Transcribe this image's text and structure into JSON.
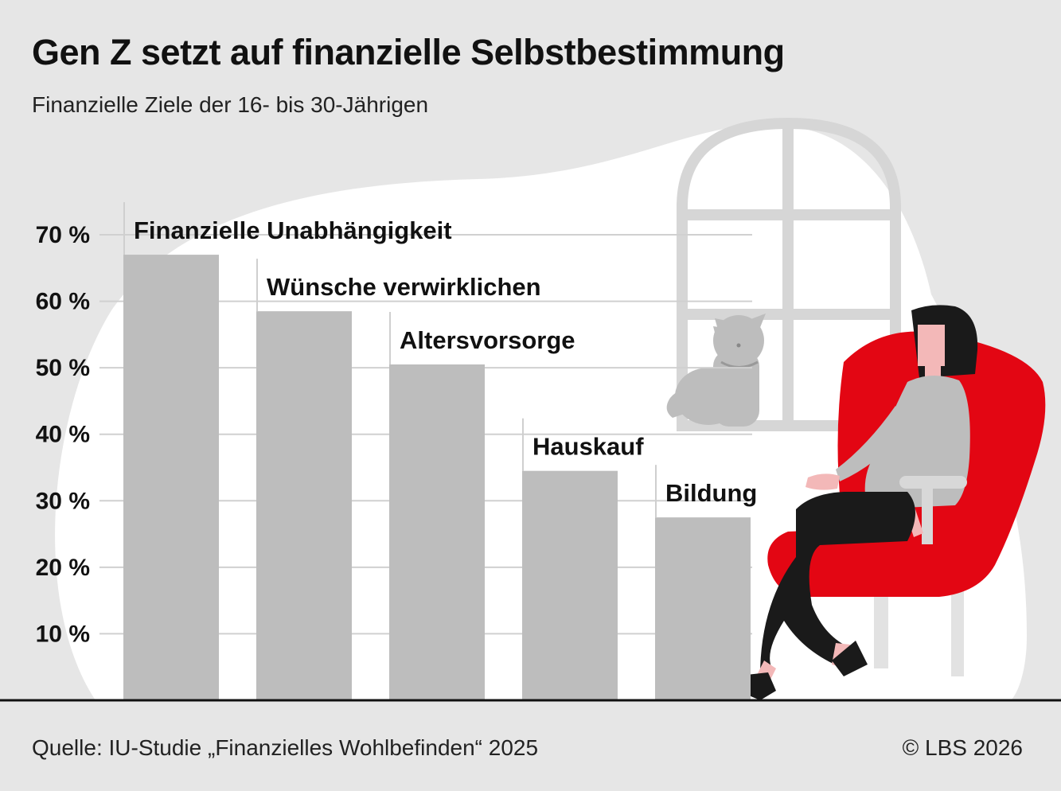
{
  "chart_data": {
    "type": "bar",
    "title": "Gen Z setzt auf finanzielle Selbstbestimmung",
    "subtitle": "Finanzielle Ziele der 16- bis 30-Jährigen",
    "categories": [
      "Finanzielle Unabhängigkeit",
      "Wünsche verwirklichen",
      "Altersvorsorge",
      "Hauskauf",
      "Bildung"
    ],
    "values": [
      67,
      58.5,
      50.5,
      34.5,
      27.5
    ],
    "ylim": [
      0,
      70
    ],
    "yticks": [
      10,
      20,
      30,
      40,
      50,
      60,
      70
    ],
    "ytick_labels": [
      "10 %",
      "20 %",
      "30 %",
      "40 %",
      "50 %",
      "60 %",
      "70 %"
    ],
    "grid": true,
    "bar_color": "#bdbdbd"
  },
  "footer": {
    "source": "Quelle: IU-Studie „Finanzielles Wohlbefinden“ 2025",
    "copyright": "© LBS 2026"
  },
  "colors": {
    "background": "#e6e6e6",
    "blob": "#ffffff",
    "bar": "#bdbdbd",
    "accent_red": "#e30613"
  },
  "illustration": {
    "icons": [
      "window-icon",
      "cat-icon",
      "armchair-icon",
      "woman-icon"
    ]
  }
}
